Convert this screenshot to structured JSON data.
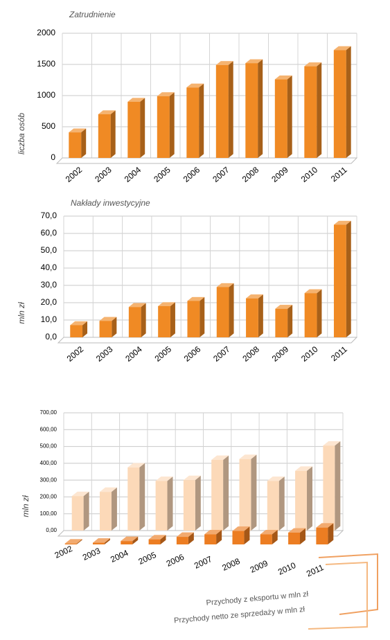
{
  "chart_data": [
    {
      "type": "bar",
      "title": "Zatrudnienie",
      "y_label": "liczba osób",
      "categories": [
        "2002",
        "2003",
        "2004",
        "2005",
        "2006",
        "2007",
        "2008",
        "2009",
        "2010",
        "2011"
      ],
      "values": [
        410,
        700,
        900,
        990,
        1130,
        1490,
        1520,
        1260,
        1470,
        1730
      ],
      "color": "#f08a24",
      "ylim": [
        0,
        2000
      ],
      "yticks": [
        0,
        500,
        1000,
        1500,
        2000
      ],
      "grid": true
    },
    {
      "type": "bar",
      "title": "Nakłady inwestycyjne",
      "y_label": "mln zł",
      "categories": [
        "2002",
        "2003",
        "2004",
        "2005",
        "2006",
        "2007",
        "2008",
        "2009",
        "2010",
        "2011"
      ],
      "values": [
        7,
        9.5,
        17.5,
        18,
        21,
        29,
        22.5,
        16.5,
        25.5,
        65
      ],
      "color": "#f08a24",
      "ylim": [
        0,
        70
      ],
      "yticks": [
        {
          "value": 0,
          "label": "0,0"
        },
        {
          "value": 10,
          "label": "10,0"
        },
        {
          "value": 20,
          "label": "20,0"
        },
        {
          "value": 30,
          "label": "30,0"
        },
        {
          "value": 40,
          "label": "40,0"
        },
        {
          "value": 50,
          "label": "50,0"
        },
        {
          "value": 60,
          "label": "60,0"
        },
        {
          "value": 70,
          "label": "70,0"
        }
      ],
      "grid": true
    },
    {
      "type": "bar3d",
      "y_label": "mln zł",
      "categories": [
        "2002",
        "2003",
        "2004",
        "2005",
        "2006",
        "2007",
        "2008",
        "2009",
        "2010",
        "2011"
      ],
      "series": [
        {
          "name": "Przychody netto ze sprzedaży w mln zł",
          "color": "#fcd9b8",
          "values": [
            205,
            230,
            375,
            295,
            300,
            420,
            425,
            295,
            355,
            505
          ]
        },
        {
          "name": "Przychody z eksportu w mln zł",
          "color": "#ec7d22",
          "values": [
            5,
            10,
            20,
            30,
            45,
            60,
            80,
            60,
            70,
            100
          ]
        }
      ],
      "ylim": [
        0,
        700
      ],
      "yticks": [
        {
          "value": 0,
          "label": "0,00"
        },
        {
          "value": 100,
          "label": "100,00"
        },
        {
          "value": 200,
          "label": "200,00"
        },
        {
          "value": 300,
          "label": "300,00"
        },
        {
          "value": 400,
          "label": "400,00"
        },
        {
          "value": 500,
          "label": "500,00"
        },
        {
          "value": 600,
          "label": "600,00"
        },
        {
          "value": 700,
          "label": "700,00"
        }
      ],
      "grid": true
    }
  ]
}
